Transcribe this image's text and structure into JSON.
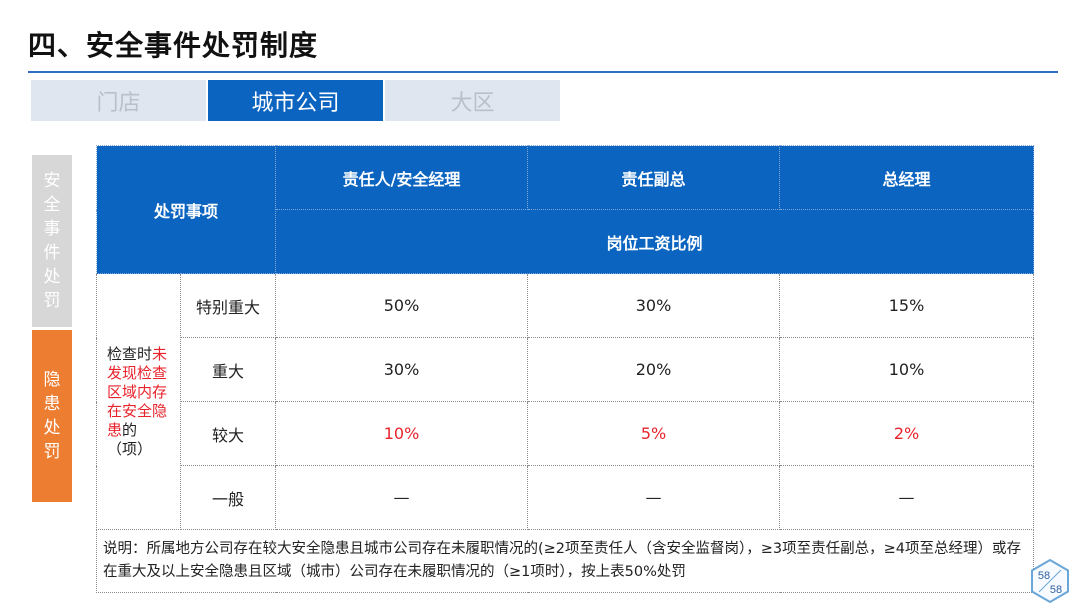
{
  "title": "四、安全事件处罚制度",
  "tabs": [
    "门店",
    "城市公司",
    "大区"
  ],
  "side_tabs": [
    {
      "chars": [
        "安",
        "全",
        "事",
        "件",
        "处",
        "罚"
      ]
    },
    {
      "chars": [
        "隐",
        "患",
        "处",
        "罚"
      ]
    }
  ],
  "table": {
    "header_item": "处罚事项",
    "roles": [
      "责任人/安全经理",
      "责任副总",
      "总经理"
    ],
    "sub_header": "岗位工资比例",
    "condition": {
      "part1": "检查时",
      "part2": "未发现检查区域内存在安全隐患",
      "part3": "的（项）"
    },
    "rows": [
      {
        "level": "特别重大",
        "values": [
          "50%",
          "30%",
          "15%"
        ],
        "highlight": false
      },
      {
        "level": "重大",
        "values": [
          "30%",
          "20%",
          "10%"
        ],
        "highlight": false
      },
      {
        "level": "较大",
        "values": [
          "10%",
          "5%",
          "2%"
        ],
        "highlight": true
      },
      {
        "level": "一般",
        "values": [
          "—",
          "—",
          "—"
        ],
        "highlight": false
      }
    ],
    "note": "说明：所属地方公司存在较大安全隐患且城市公司存在未履职情况的(≥2项至责任人（含安全监督岗），≥3项至责任副总，≥4项至总经理）或存在重大及以上安全隐患且区域（城市）公司存在未履职情况的（≥1项时），按上表50%处罚"
  },
  "page_badge": {
    "current": "58",
    "total": "58"
  },
  "colors": {
    "accent": "#0b64c0",
    "orange": "#ed7d31",
    "red": "#e8232b"
  }
}
